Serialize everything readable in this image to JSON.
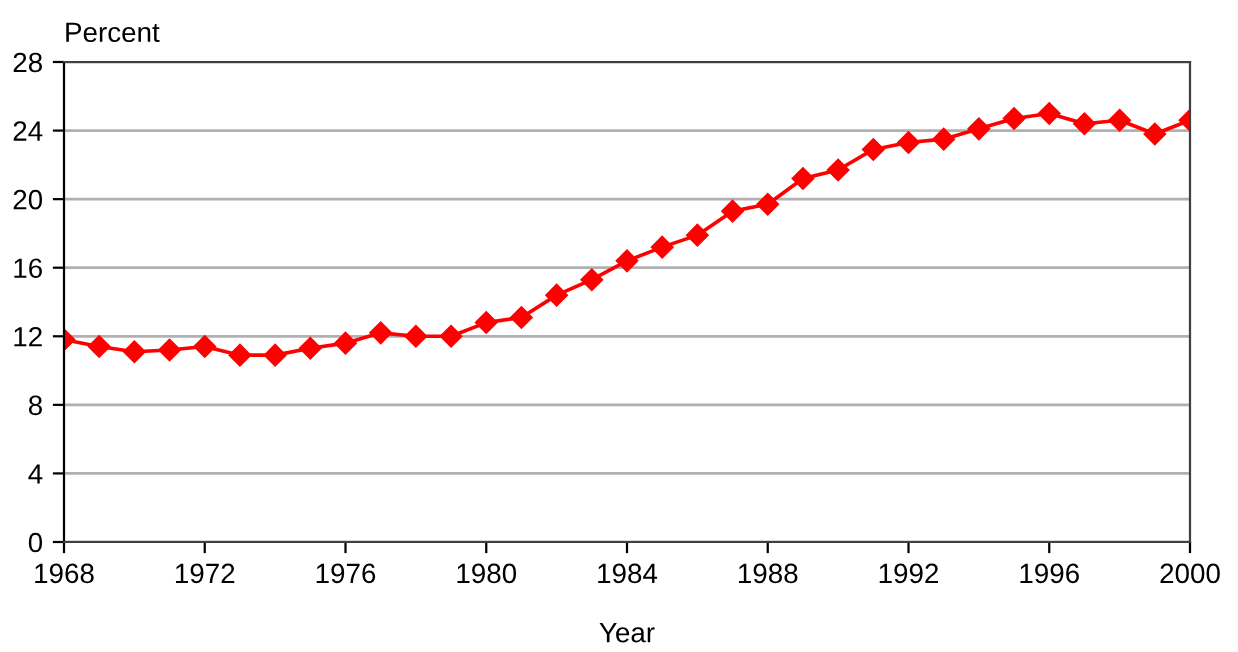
{
  "chart_data": {
    "type": "line",
    "ylabel": "Percent",
    "xlabel": "Year",
    "x": [
      1968,
      1969,
      1970,
      1971,
      1972,
      1973,
      1974,
      1975,
      1976,
      1977,
      1978,
      1979,
      1980,
      1981,
      1982,
      1983,
      1984,
      1985,
      1986,
      1987,
      1988,
      1989,
      1990,
      1991,
      1992,
      1993,
      1994,
      1995,
      1996,
      1997,
      1998,
      1999,
      2000
    ],
    "series": [
      {
        "color": "#ff0000",
        "values": [
          11.8,
          11.4,
          11.1,
          11.2,
          11.4,
          10.9,
          10.9,
          11.3,
          11.6,
          12.2,
          12.0,
          12.0,
          12.8,
          13.1,
          14.4,
          15.3,
          16.4,
          17.2,
          17.9,
          19.3,
          19.7,
          21.2,
          21.7,
          22.9,
          23.3,
          23.5,
          24.1,
          24.7,
          25.0,
          24.4,
          24.6,
          23.8,
          24.6
        ]
      }
    ],
    "xlim": [
      1968,
      2000
    ],
    "xticks": [
      1968,
      1972,
      1976,
      1980,
      1984,
      1988,
      1992,
      1996,
      2000
    ],
    "ylim": [
      0,
      28
    ],
    "yticks": [
      0,
      4,
      8,
      12,
      16,
      20,
      24,
      28
    ],
    "grid": "y",
    "marker": "diamond",
    "line_style": "solid",
    "legend": false
  }
}
